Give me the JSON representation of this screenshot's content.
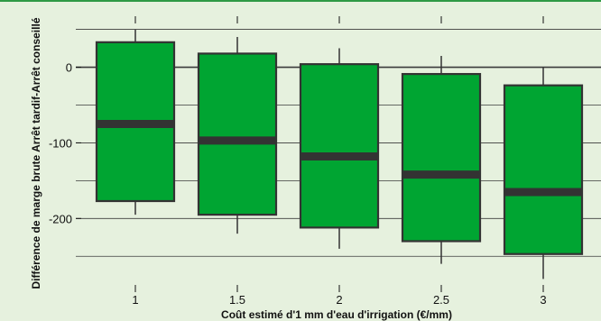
{
  "chart_data": {
    "type": "boxplot",
    "title": "",
    "xlabel": "Coût estimé d'1 mm d'eau d'irrigation (€/mm)",
    "ylabel": "Différence de marge brute Arrêt tardif-Arrêt conseillé",
    "x_tick_labels": [
      "1",
      "1.5",
      "2",
      "2.5",
      "3"
    ],
    "y_ticks": [
      0,
      -100,
      -200
    ],
    "y_tick_labels": [
      "0",
      "-100",
      "-200"
    ],
    "ylim": [
      -295,
      65
    ],
    "grid": true,
    "colors": {
      "box_fill": "#00a532",
      "box_stroke": "#333333",
      "median": "#333333",
      "background": "#e6f1de",
      "grid": "#3a3a3a",
      "accent_border": "#2f9a45"
    },
    "boxes": [
      {
        "x": "1",
        "whisker_low": -195,
        "q1": -177,
        "median": -75,
        "q3": 33,
        "whisker_high": 50
      },
      {
        "x": "1.5",
        "whisker_low": -220,
        "q1": -195,
        "median": -97,
        "q3": 18,
        "whisker_high": 40
      },
      {
        "x": "2",
        "whisker_low": -240,
        "q1": -212,
        "median": -118,
        "q3": 4,
        "whisker_high": 25
      },
      {
        "x": "2.5",
        "whisker_low": -260,
        "q1": -230,
        "median": -142,
        "q3": -9,
        "whisker_high": 15
      },
      {
        "x": "3",
        "whisker_low": -280,
        "q1": -247,
        "median": -165,
        "q3": -24,
        "whisker_high": 0
      }
    ]
  }
}
